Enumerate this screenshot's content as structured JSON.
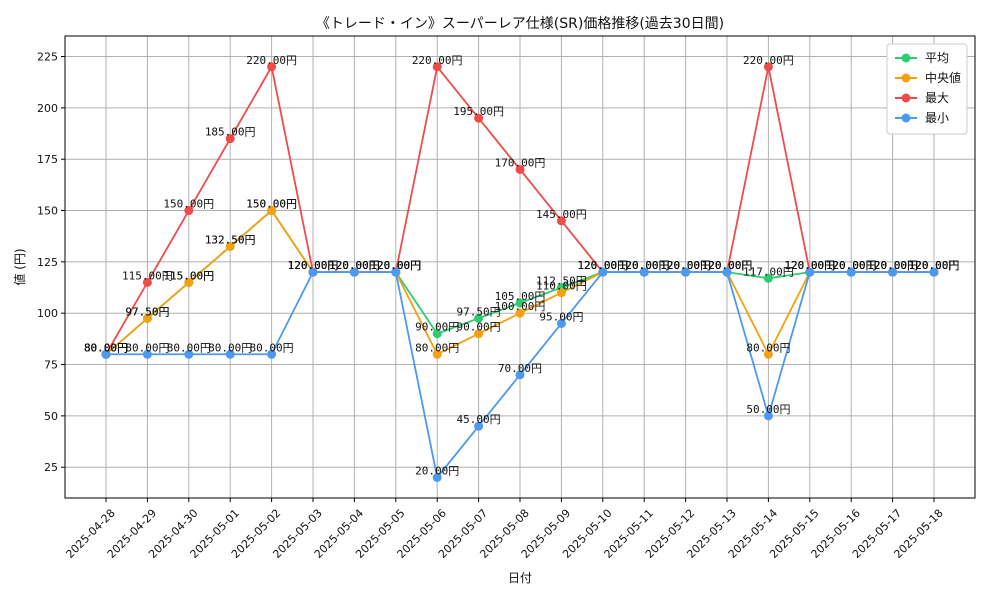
{
  "chart_data": {
    "type": "line",
    "title": "《トレード・イン》スーパーレア仕様(SR)価格推移(過去30日間)",
    "xlabel": "日付",
    "ylabel": "値 (円)",
    "ylim": [
      10,
      235
    ],
    "yticks": [
      25,
      50,
      75,
      100,
      125,
      150,
      175,
      200,
      225
    ],
    "grid": true,
    "legend_position": "top-right",
    "categories": [
      "2025-04-28",
      "2025-04-29",
      "2025-04-30",
      "2025-05-01",
      "2025-05-02",
      "2025-05-03",
      "2025-05-04",
      "2025-05-05",
      "2025-05-06",
      "2025-05-07",
      "2025-05-08",
      "2025-05-09",
      "2025-05-10",
      "2025-05-11",
      "2025-05-12",
      "2025-05-13",
      "2025-05-14",
      "2025-05-15",
      "2025-05-16",
      "2025-05-17",
      "2025-05-18"
    ],
    "series": [
      {
        "name": "平均",
        "color": "#2ecc71",
        "values": [
          80,
          97.5,
          115,
          132.5,
          150,
          120,
          120,
          120,
          90,
          97.5,
          105,
          112.5,
          120,
          120,
          120,
          120,
          117,
          120,
          120,
          120,
          120
        ]
      },
      {
        "name": "中央値",
        "color": "#f5a00f",
        "values": [
          80,
          97.5,
          115,
          132.5,
          150,
          120,
          120,
          120,
          80,
          90,
          100,
          110,
          120,
          120,
          120,
          120,
          80,
          120,
          120,
          120,
          120
        ]
      },
      {
        "name": "最大",
        "color": "#f04b4b",
        "values": [
          80,
          115,
          150,
          185,
          220,
          120,
          120,
          120,
          220,
          195,
          170,
          145,
          120,
          120,
          120,
          120,
          220,
          120,
          120,
          120,
          120
        ]
      },
      {
        "name": "最小",
        "color": "#4a9af0",
        "values": [
          80,
          80,
          80,
          80,
          80,
          120,
          120,
          120,
          20,
          45,
          70,
          95,
          120,
          120,
          120,
          120,
          50,
          120,
          120,
          120,
          120
        ]
      }
    ],
    "value_format_suffix": "円"
  }
}
